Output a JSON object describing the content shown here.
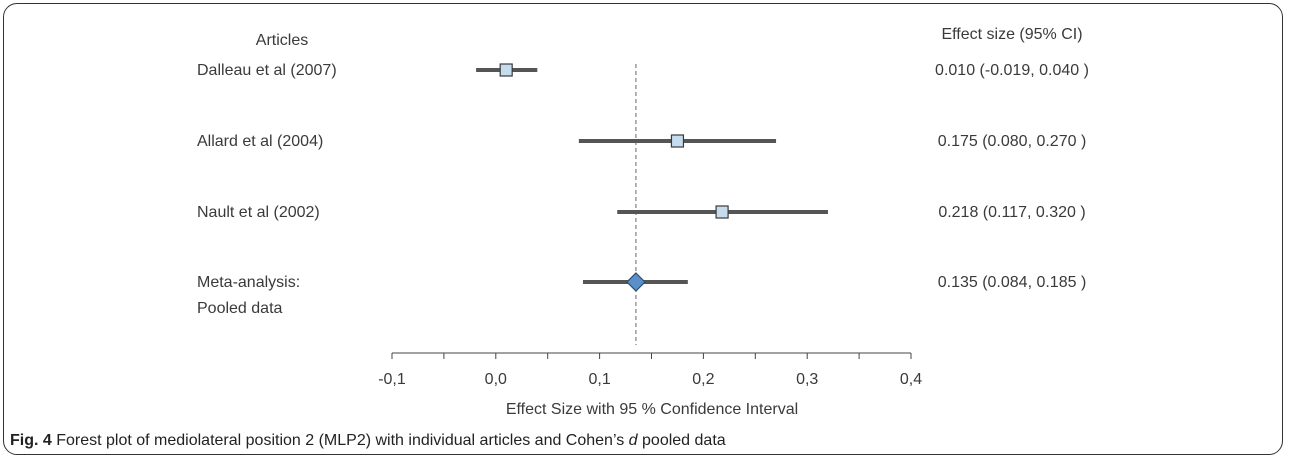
{
  "chart_data": {
    "type": "forest",
    "left_header": "Articles",
    "right_header": "Effect size (95% CI)",
    "xlabel": "Effect Size with 95 % Confidence Interval",
    "xlim": [
      -0.1,
      0.4
    ],
    "x_ticks": [
      -0.1,
      0.0,
      0.1,
      0.2,
      0.3,
      0.4
    ],
    "x_tick_labels": [
      "-0,1",
      "0,0",
      "0,1",
      "0,2",
      "0,3",
      "0,4"
    ],
    "reference_line": 0.135,
    "studies": [
      {
        "label_lines": [
          "Dalleau et al (2007)"
        ],
        "estimate": 0.01,
        "ci_low": -0.019,
        "ci_high": 0.04,
        "display": "0.010 (-0.019, 0.040 )",
        "marker": "square"
      },
      {
        "label_lines": [
          "Allard et al (2004)"
        ],
        "estimate": 0.175,
        "ci_low": 0.08,
        "ci_high": 0.27,
        "display": "0.175 (0.080, 0.270 )",
        "marker": "square"
      },
      {
        "label_lines": [
          "Nault et al (2002)"
        ],
        "estimate": 0.218,
        "ci_low": 0.117,
        "ci_high": 0.32,
        "display": "0.218 (0.117, 0.320 )",
        "marker": "square"
      },
      {
        "label_lines": [
          "Meta-analysis:",
          "Pooled data"
        ],
        "estimate": 0.135,
        "ci_low": 0.084,
        "ci_high": 0.185,
        "display": "0.135 (0.084, 0.185 )",
        "marker": "diamond"
      }
    ],
    "colors": {
      "ci_line": "#555555",
      "square_fill": "#c5dcef",
      "square_stroke": "#3a3a3a",
      "diamond_fill": "#5b8fc7",
      "diamond_stroke": "#2a4d73",
      "axis": "#444444"
    }
  },
  "caption": {
    "fig_label": "Fig. 4",
    "text_before": " Forest plot of mediolateral position 2 (MLP2) with individual articles and Cohen’s ",
    "italic": "d",
    "text_after": " pooled data"
  }
}
